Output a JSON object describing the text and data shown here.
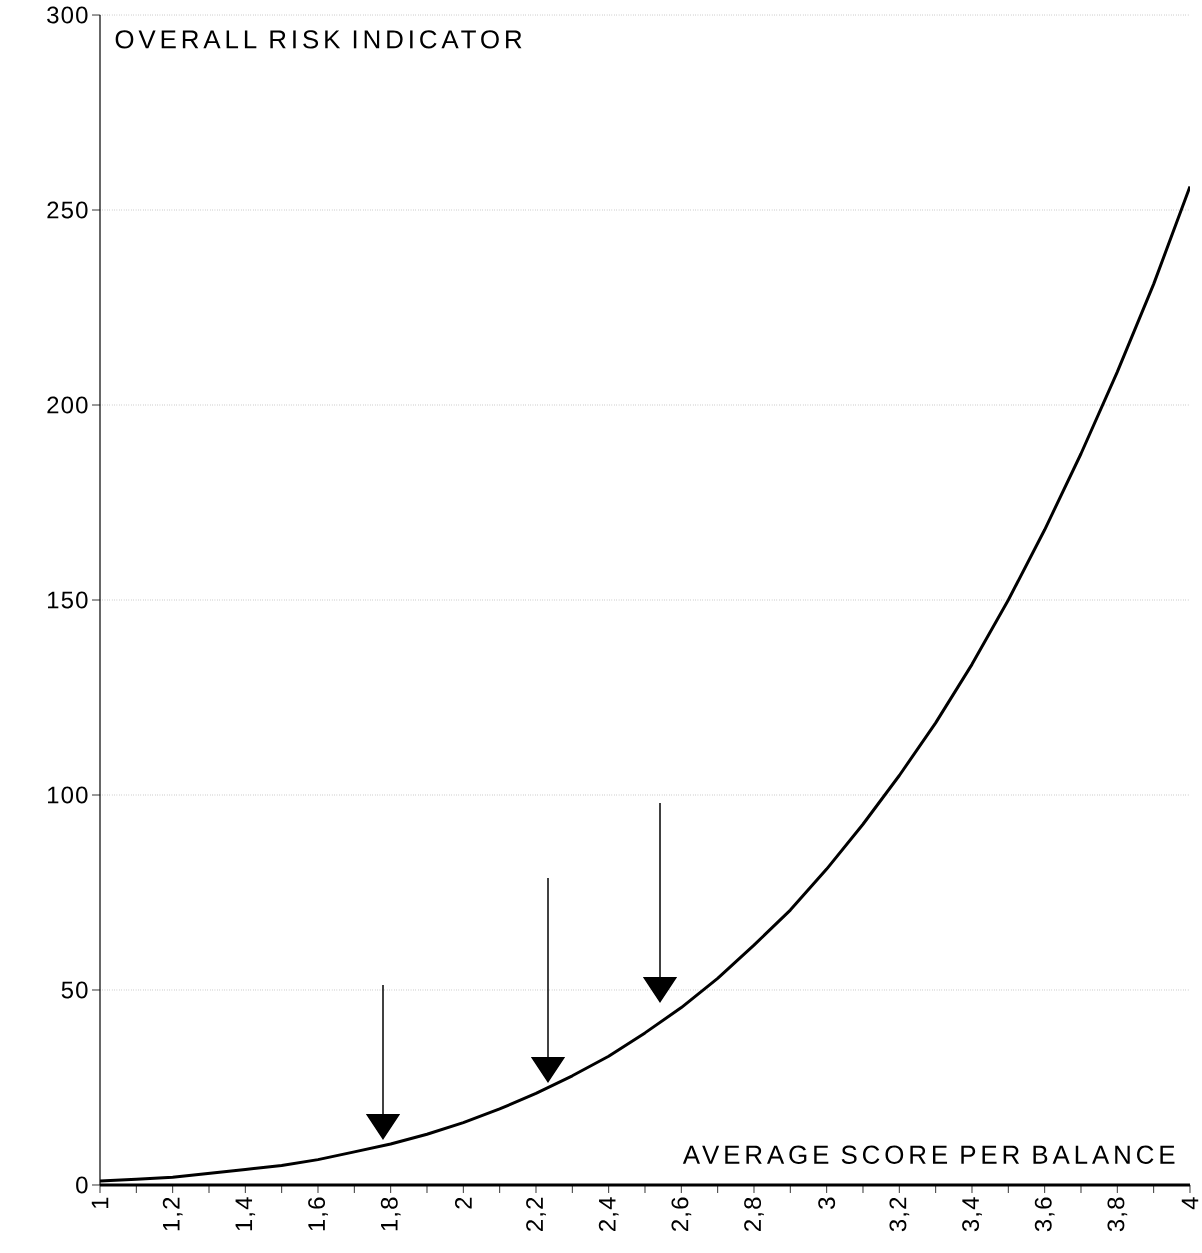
{
  "chart_data": {
    "type": "line",
    "xlabel": "AVERAGE SCORE PER BALANCE",
    "ylabel": "OVERALL RISK INDICATOR",
    "x": [
      1,
      1.1,
      1.2,
      1.3,
      1.4,
      1.5,
      1.6,
      1.7,
      1.8,
      1.9,
      2,
      2.1,
      2.2,
      2.3,
      2.4,
      2.5,
      2.6,
      2.7,
      2.8,
      2.9,
      3,
      3.1,
      3.2,
      3.3,
      3.4,
      3.5,
      3.6,
      3.7,
      3.8,
      3.9,
      4
    ],
    "series": [
      {
        "color": "#000000",
        "values": [
          1,
          1.5,
          2,
          3,
          4,
          5,
          6.5,
          8.5,
          10.5,
          13,
          16,
          19.5,
          23.5,
          28,
          33,
          39,
          45.5,
          53,
          61.5,
          70.5,
          81,
          92.5,
          105,
          118.5,
          133.5,
          150,
          168,
          187.5,
          208.5,
          231,
          256
        ]
      }
    ],
    "xlim": [
      1,
      4
    ],
    "ylim": [
      0,
      300
    ],
    "xticks": [
      1,
      {
        "value": 1.2,
        "label": "1,2"
      },
      {
        "value": 1.4,
        "label": "1,4"
      },
      {
        "value": 1.6,
        "label": "1,6"
      },
      {
        "value": 1.8,
        "label": "1,8"
      },
      2,
      {
        "value": 2.2,
        "label": "2,2"
      },
      {
        "value": 2.4,
        "label": "2,4"
      },
      {
        "value": 2.6,
        "label": "2,6"
      },
      {
        "value": 2.8,
        "label": "2,8"
      },
      3,
      {
        "value": 3.2,
        "label": "3,2"
      },
      {
        "value": 3.4,
        "label": "3,4"
      },
      {
        "value": 3.6,
        "label": "3,6"
      },
      {
        "value": 3.8,
        "label": "3,8"
      },
      4
    ],
    "yticks": [
      0,
      50,
      100,
      150,
      200,
      250,
      300
    ],
    "grid": "y",
    "marker": "none",
    "line_style": "solid"
  }
}
